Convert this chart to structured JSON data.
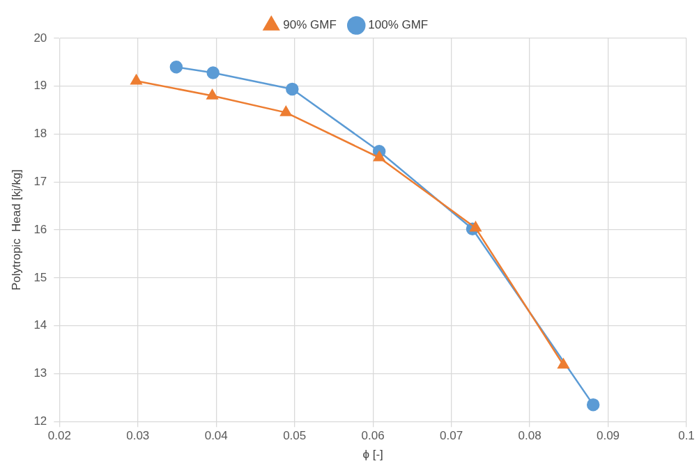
{
  "chart_data": {
    "type": "line",
    "xlabel": "ϕ [-]",
    "ylabel": "Polytropic  Head [kj/kg]",
    "x": [
      0.0349,
      0.0396,
      0.0497,
      0.0608,
      0.0727,
      0.0881
    ],
    "series": [
      {
        "name": "100% GMF",
        "color": "#5b9bd5",
        "marker": "circle",
        "values": [
          19.4,
          19.28,
          18.94,
          17.64,
          16.02,
          12.35
        ]
      },
      {
        "name": "90% GMF",
        "color": "#ed7d31",
        "marker": "triangle",
        "x": [
          0.0298,
          0.0395,
          0.0489,
          0.0608,
          0.0731,
          0.0843
        ],
        "values": [
          19.11,
          18.8,
          18.45,
          17.51,
          16.04,
          13.18
        ]
      }
    ],
    "xlim": [
      0.02,
      0.1
    ],
    "xticks": [
      0.02,
      0.03,
      0.04,
      0.05,
      0.06,
      0.07,
      0.08,
      0.09,
      0.1
    ],
    "ylim": [
      12,
      20
    ],
    "yticks": [
      12,
      13,
      14,
      15,
      16,
      17,
      18,
      19,
      20
    ],
    "grid": true,
    "legend": "top"
  }
}
